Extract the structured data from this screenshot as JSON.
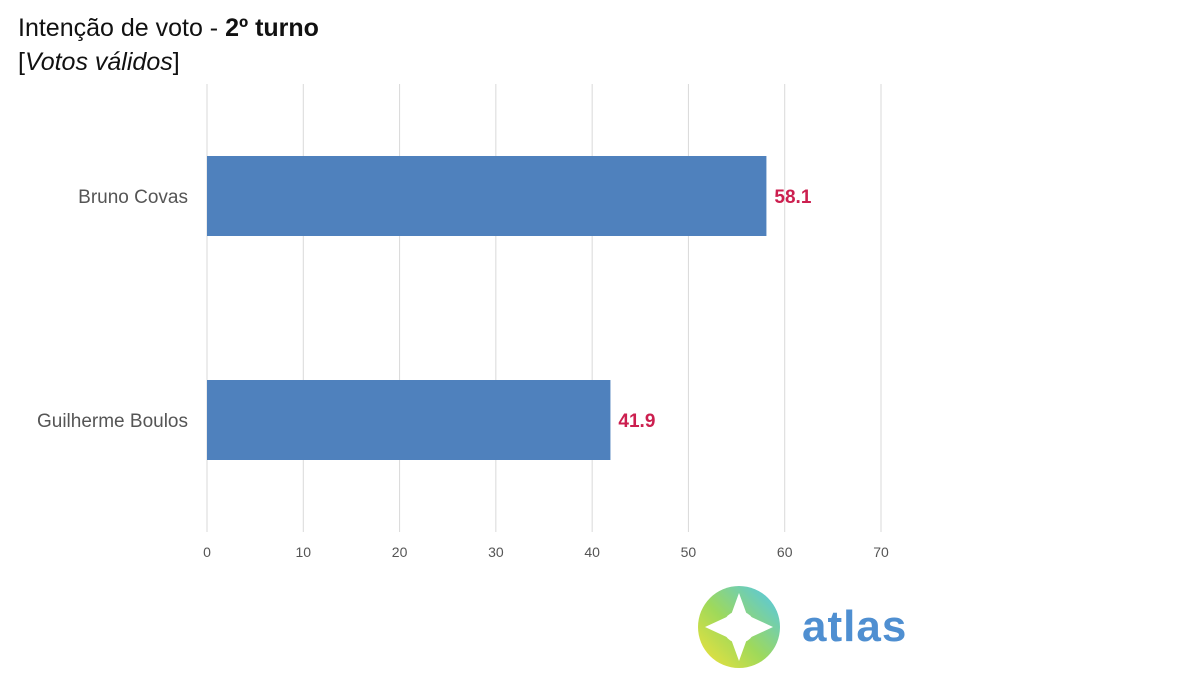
{
  "header": {
    "title_prefix": "Intenção de voto - ",
    "title_bold": "2º turno",
    "subtitle_open": "[",
    "subtitle_italic": "Votos válidos",
    "subtitle_close": "]"
  },
  "chart_data": {
    "type": "bar",
    "orientation": "horizontal",
    "categories": [
      "Bruno Covas",
      "Guilherme Boulos"
    ],
    "values": [
      58.1,
      41.9
    ],
    "value_labels": [
      "58.1",
      "41.9"
    ],
    "xlim": [
      0,
      70
    ],
    "xticks": [
      0,
      10,
      20,
      30,
      40,
      50,
      60,
      70
    ],
    "grid": true,
    "bar_color": "#4f81bd",
    "value_label_color": "#cc1f4f",
    "grid_color": "#d9d9d9"
  },
  "logo": {
    "text": "atlas",
    "text_color": "#4f8fd1"
  }
}
